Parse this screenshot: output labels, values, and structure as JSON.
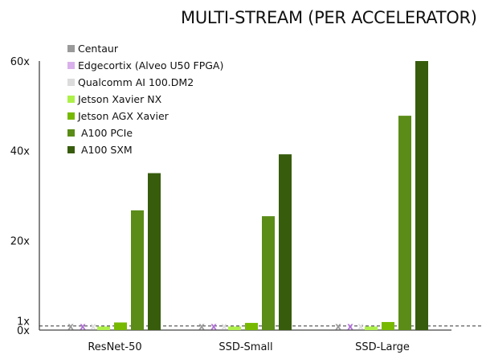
{
  "chart_data": {
    "type": "bar",
    "title": "MULTI-STREAM (PER ACCELERATOR)",
    "xlabel": "",
    "ylabel": "",
    "categories": [
      "ResNet-50",
      "SSD-Small",
      "SSD-Large"
    ],
    "ylim": [
      0,
      60
    ],
    "yticks": [
      {
        "value": 0,
        "label": "0x"
      },
      {
        "value": 1,
        "label": "1x"
      },
      {
        "value": 20,
        "label": "20x"
      },
      {
        "value": 40,
        "label": "40x"
      },
      {
        "value": 60,
        "label": "60x"
      }
    ],
    "reference_line": {
      "value": 1,
      "style": "dashed"
    },
    "grid": false,
    "legend_position": "top-left",
    "series": [
      {
        "name": "Centaur",
        "color": "#9a9a9a",
        "values": [
          null,
          null,
          null
        ],
        "marker": "x"
      },
      {
        "name": "Edgecortix (Alveo U50 FPGA)",
        "color": "#d9b0ec",
        "marker_color": "#b070d8",
        "values": [
          null,
          null,
          null
        ],
        "marker": "x"
      },
      {
        "name": "Qualcomm AI 100.DM2",
        "color": "#dcdcdc",
        "values": [
          null,
          null,
          null
        ],
        "marker": "x"
      },
      {
        "name": "Jetson Xavier NX",
        "color": "#aef04a",
        "values": [
          0.8,
          0.8,
          0.8
        ]
      },
      {
        "name": "Jetson AGX Xavier",
        "color": "#76b900",
        "values": [
          1.7,
          1.6,
          1.8
        ]
      },
      {
        "name": "A100 PCIe",
        "color": "#5a8c17",
        "values": [
          26.7,
          25.4,
          47.8
        ]
      },
      {
        "name": "A100 SXM",
        "color": "#375c0c",
        "values": [
          35.0,
          39.2,
          60.0
        ]
      }
    ]
  }
}
